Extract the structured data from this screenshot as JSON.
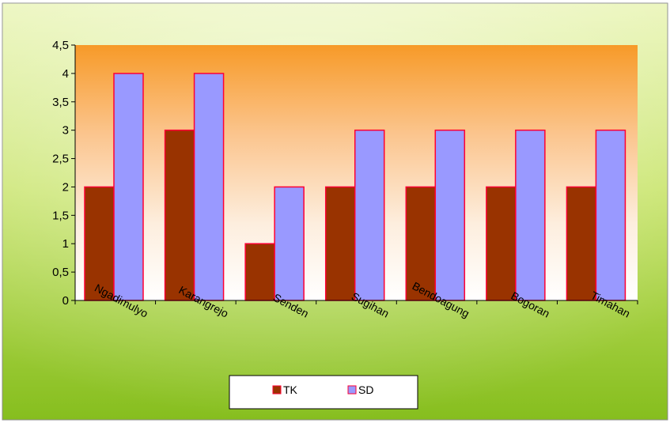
{
  "chart_data": {
    "type": "bar",
    "categories": [
      "Ngadimulyo",
      "Karangrejo",
      "Senden",
      "Sugihan",
      "Bendoagung",
      "Bogoran",
      "Timahan"
    ],
    "series": [
      {
        "name": "TK",
        "values": [
          2,
          3,
          1,
          2,
          2,
          2,
          2
        ],
        "color": "#993300"
      },
      {
        "name": "SD",
        "values": [
          4,
          4,
          2,
          3,
          3,
          3,
          3
        ],
        "color": "#9999FF"
      }
    ],
    "bar_border_color": "#FF0033",
    "ylim": [
      0,
      4.5
    ],
    "yticks": [
      "0",
      "0,5",
      "1",
      "1,5",
      "2",
      "2,5",
      "3",
      "3,5",
      "4",
      "4,5"
    ],
    "grid": false,
    "legend_position": "bottom",
    "xlabel": "",
    "ylabel": "",
    "title": ""
  }
}
